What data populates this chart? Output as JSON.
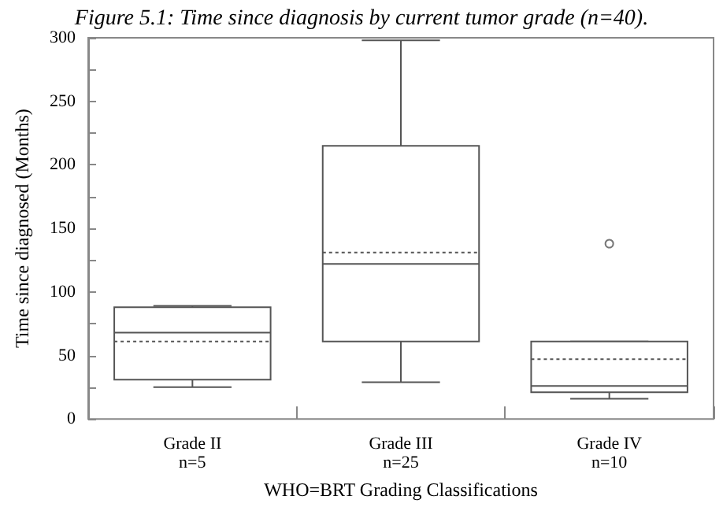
{
  "chart_data": {
    "type": "box",
    "title": "Figure 5.1: Time since diagnosis by current tumor grade (n=40).",
    "xlabel": "WHO=BRT Grading Classifications",
    "ylabel": "Time since diagnosed (Months)",
    "categories": [
      "Grade II\nn=5",
      "Grade III\nn=25",
      "Grade IV\nn=10"
    ],
    "boxes": [
      {
        "low": 25,
        "q1": 31,
        "median": 68,
        "q3": 88,
        "high": 89,
        "mean": 61
      },
      {
        "low": 29,
        "q1": 61,
        "median": 122,
        "q3": 215,
        "high": 298,
        "mean": 131
      },
      {
        "low": 16,
        "q1": 21,
        "median": 26,
        "q3": 61,
        "high": 61,
        "mean": 47,
        "outliers": [
          138
        ]
      }
    ],
    "color": "#555555",
    "ylim": [
      0,
      300
    ],
    "yticks": [
      0,
      {
        "value": 25,
        "label": null
      },
      50,
      {
        "value": 75,
        "label": null
      },
      100,
      {
        "value": 125,
        "label": null
      },
      150,
      {
        "value": 175,
        "label": null
      },
      200,
      {
        "value": 225,
        "label": null
      },
      250,
      {
        "value": 275,
        "label": null
      },
      300
    ],
    "grid": false
  }
}
